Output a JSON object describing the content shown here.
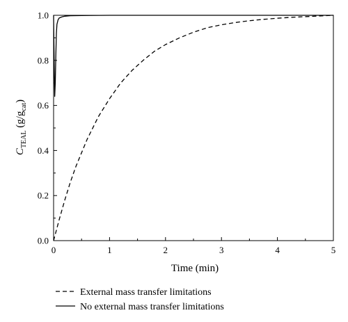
{
  "chart_data": {
    "type": "line",
    "xlabel": "Time (min)",
    "ylabel": {
      "main": "C",
      "main_sub": "TEAL",
      "unit_open": " (g/g",
      "unit_sub": "cat",
      "unit_close": ")"
    },
    "xlim": [
      0,
      5
    ],
    "ylim": [
      0,
      1.0
    ],
    "x_ticks": [
      0,
      1,
      2,
      3,
      4,
      5
    ],
    "x_tick_labels": [
      "0",
      "1",
      "2",
      "3",
      "4",
      "5"
    ],
    "y_ticks": [
      0.0,
      0.2,
      0.4,
      0.6,
      0.8,
      1.0
    ],
    "y_tick_labels": [
      "0.0",
      "0.2",
      "0.4",
      "0.6",
      "0.8",
      "1.0"
    ],
    "grid": false,
    "legend_position": "bottom-left, below plot",
    "series": [
      {
        "name": "External mass transfer limitations",
        "style": "dashed",
        "color": "#000000",
        "x": [
          0,
          0.1,
          0.2,
          0.3,
          0.4,
          0.5,
          0.6,
          0.8,
          1.0,
          1.2,
          1.4,
          1.6,
          1.8,
          2.0,
          2.25,
          2.5,
          2.75,
          3.0,
          3.25,
          3.5,
          3.75,
          4.0,
          4.25,
          4.5,
          4.75,
          5.0
        ],
        "y": [
          0.0,
          0.093,
          0.18,
          0.26,
          0.33,
          0.39,
          0.45,
          0.55,
          0.63,
          0.7,
          0.755,
          0.8,
          0.84,
          0.87,
          0.9,
          0.925,
          0.945,
          0.958,
          0.968,
          0.976,
          0.982,
          0.987,
          0.991,
          0.994,
          0.997,
          1.0
        ]
      },
      {
        "name": "No external mass transfer limitations",
        "style": "solid",
        "color": "#000000",
        "x": [
          0,
          0.01,
          0.02,
          0.03,
          0.04,
          0.05,
          0.06,
          0.08,
          0.1,
          0.15,
          0.2,
          0.3,
          0.5,
          1.0,
          2.0,
          3.0,
          4.0,
          5.0
        ],
        "y": [
          1.0,
          0.8,
          0.64,
          0.7,
          0.82,
          0.92,
          0.96,
          0.98,
          0.988,
          0.993,
          0.996,
          0.998,
          0.999,
          1.0,
          1.0,
          1.0,
          1.0,
          1.0
        ]
      }
    ]
  }
}
